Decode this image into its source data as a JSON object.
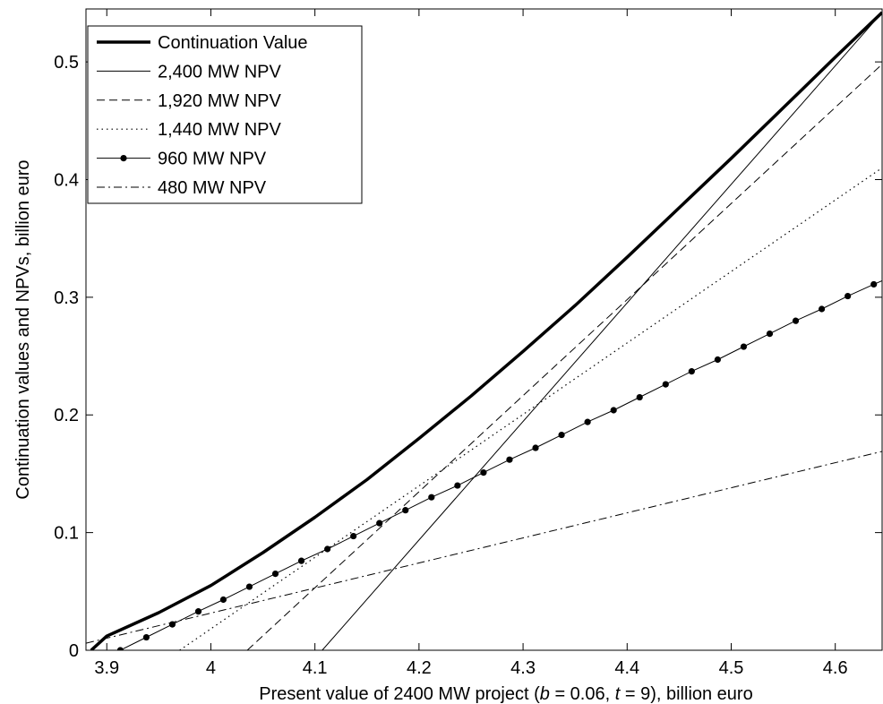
{
  "chart_data": {
    "type": "line",
    "title": "",
    "xlabel": {
      "prefix": "Present value of 2400 MW project (",
      "b_var": "b",
      "b_val": " = 0.06, ",
      "t_var": "t",
      "t_val": " = 9), billion euro"
    },
    "ylabel": "Continuation values and NPVs, billion euro",
    "xlim": [
      3.88,
      4.645
    ],
    "ylim": [
      0,
      0.545
    ],
    "xticks": [
      3.9,
      4.0,
      4.1,
      4.2,
      4.3,
      4.4,
      4.5,
      4.6
    ],
    "xtick_labels": [
      "3.9",
      "4",
      "4.1",
      "4.2",
      "4.3",
      "4.4",
      "4.5",
      "4.6"
    ],
    "yticks": [
      0,
      0.1,
      0.2,
      0.3,
      0.4,
      0.5
    ],
    "ytick_labels": [
      "0",
      "0.1",
      "0.2",
      "0.3",
      "0.4",
      "0.5"
    ],
    "grid": false,
    "legend_position": "top-left",
    "series": [
      {
        "name": "Continuation Value",
        "style": "thick-solid",
        "x": [
          3.885,
          3.9,
          3.95,
          4.0,
          4.05,
          4.1,
          4.15,
          4.2,
          4.25,
          4.3,
          4.35,
          4.4,
          4.45,
          4.5,
          4.55,
          4.6,
          4.645
        ],
        "y": [
          0.0,
          0.012,
          0.032,
          0.055,
          0.083,
          0.113,
          0.145,
          0.18,
          0.216,
          0.254,
          0.293,
          0.334,
          0.376,
          0.418,
          0.461,
          0.504,
          0.542
        ]
      },
      {
        "name": "2,400 MW NPV",
        "style": "solid",
        "x": [
          4.107,
          4.645
        ],
        "y": [
          0.0,
          0.542
        ]
      },
      {
        "name": "1,920 MW NPV",
        "style": "dashed",
        "x": [
          4.035,
          4.645
        ],
        "y": [
          0.0,
          0.498
        ]
      },
      {
        "name": "1,440 MW NPV",
        "style": "dotted",
        "x": [
          3.97,
          4.645
        ],
        "y": [
          0.0,
          0.41
        ]
      },
      {
        "name": "960 MW NPV",
        "style": "solid-markers",
        "x": [
          3.913,
          3.938,
          3.963,
          3.988,
          4.012,
          4.037,
          4.062,
          4.087,
          4.112,
          4.137,
          4.162,
          4.187,
          4.212,
          4.237,
          4.262,
          4.287,
          4.312,
          4.337,
          4.362,
          4.387,
          4.412,
          4.437,
          4.462,
          4.487,
          4.512,
          4.537,
          4.562,
          4.587,
          4.612,
          4.637,
          4.645
        ],
        "y": [
          0.0,
          0.011,
          0.022,
          0.033,
          0.043,
          0.054,
          0.065,
          0.076,
          0.086,
          0.097,
          0.108,
          0.119,
          0.13,
          0.14,
          0.151,
          0.162,
          0.172,
          0.183,
          0.194,
          0.204,
          0.215,
          0.226,
          0.237,
          0.247,
          0.258,
          0.269,
          0.28,
          0.29,
          0.301,
          0.311,
          0.314
        ]
      },
      {
        "name": "480 MW NPV",
        "style": "dash-dot",
        "x": [
          3.88,
          4.645
        ],
        "y": [
          0.006,
          0.169
        ]
      }
    ]
  }
}
